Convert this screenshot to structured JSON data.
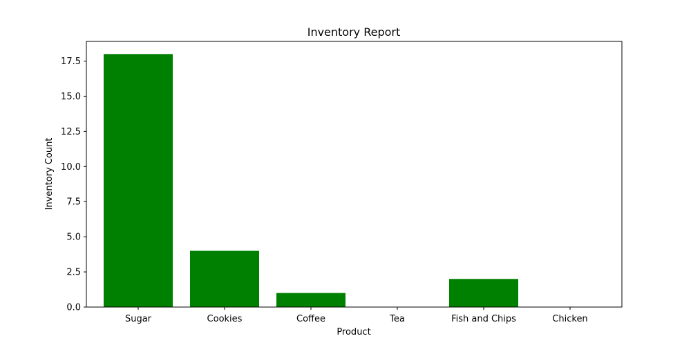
{
  "chart_data": {
    "type": "bar",
    "title": "Inventory Report",
    "xlabel": "Product",
    "ylabel": "Inventory Count",
    "categories": [
      "Sugar",
      "Cookies",
      "Coffee",
      "Tea",
      "Fish and Chips",
      "Chicken"
    ],
    "values": [
      18,
      4,
      1,
      0,
      2,
      0
    ],
    "ylim": [
      0,
      18.9
    ],
    "yticks": [
      "0.0",
      "2.5",
      "5.0",
      "7.5",
      "10.0",
      "12.5",
      "15.0",
      "17.5"
    ],
    "bar_color": "#008000",
    "grid": false,
    "legend": false
  }
}
